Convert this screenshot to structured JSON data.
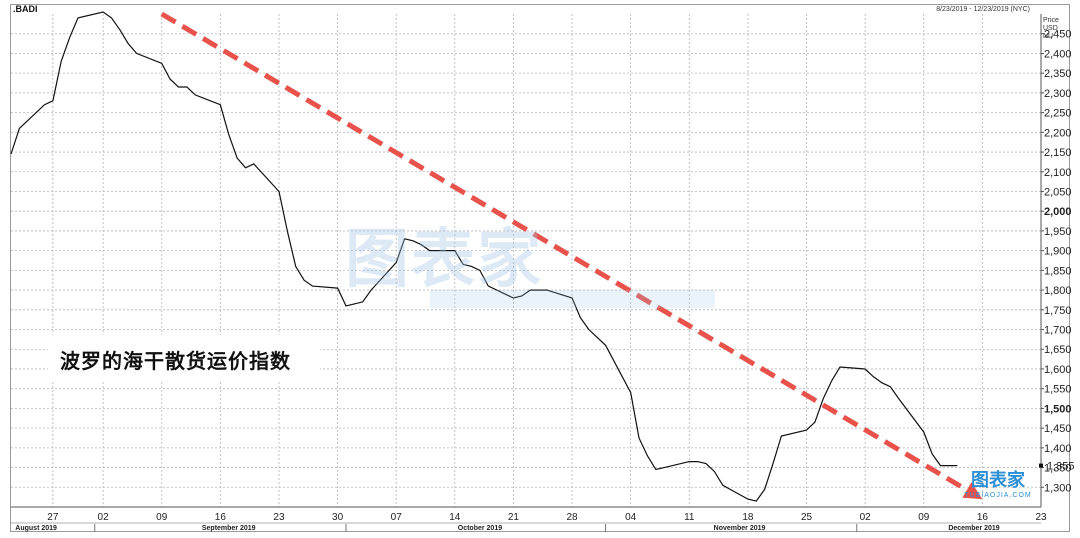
{
  "chart_data": {
    "type": "line",
    "title": ".BADI",
    "date_range_label": "8/23/2019 - 12/23/2019 (NYC)",
    "y_unit_labels": [
      "Price",
      "USD",
      "NU"
    ],
    "y_range": [
      1250,
      2500
    ],
    "y_ticks": [
      1300,
      1350,
      1400,
      1450,
      1500,
      1550,
      1600,
      1650,
      1700,
      1750,
      1800,
      1850,
      1900,
      1950,
      2000,
      2050,
      2100,
      2150,
      2200,
      2250,
      2300,
      2350,
      2400,
      2450
    ],
    "y_tick_labels": [
      "1,300",
      "1,350",
      "1,400",
      "1,450",
      "1,500",
      "1,550",
      "1,600",
      "1,650",
      "1,700",
      "1,750",
      "1,800",
      "1,850",
      "1,900",
      "1,950",
      "2,000",
      "2,050",
      "2,100",
      "2,150",
      "2,200",
      "2,250",
      "2,300",
      "2,350",
      "2,400",
      "2,450"
    ],
    "y_bold_ticks": [
      1500,
      2000
    ],
    "last_value_label": "1,355",
    "x_tick_labels": [
      "27",
      "02",
      "09",
      "16",
      "23",
      "30",
      "07",
      "14",
      "21",
      "28",
      "04",
      "11",
      "18",
      "25",
      "02",
      "09",
      "16",
      "23"
    ],
    "x_tick_dates": [
      "2019-08-27",
      "2019-09-02",
      "2019-09-09",
      "2019-09-16",
      "2019-09-23",
      "2019-09-30",
      "2019-10-07",
      "2019-10-14",
      "2019-10-21",
      "2019-10-28",
      "2019-11-04",
      "2019-11-11",
      "2019-11-18",
      "2019-11-25",
      "2019-12-02",
      "2019-12-09",
      "2019-12-16",
      "2019-12-23"
    ],
    "months": [
      {
        "label": "August 2019",
        "date": "2019-08-25"
      },
      {
        "label": "September 2019",
        "date": "2019-09-17"
      },
      {
        "label": "October 2019",
        "date": "2019-10-17"
      },
      {
        "label": "November 2019",
        "date": "2019-11-17"
      },
      {
        "label": "December 2019",
        "date": "2019-12-15"
      }
    ],
    "x_range": [
      "2019-08-22",
      "2019-12-23"
    ],
    "grid": true,
    "series": [
      {
        "x": [
          "2019-08-22",
          "2019-08-23",
          "2019-08-26",
          "2019-08-27",
          "2019-08-28",
          "2019-08-29",
          "2019-08-30",
          "2019-09-02",
          "2019-09-03",
          "2019-09-04",
          "2019-09-05",
          "2019-09-06",
          "2019-09-09",
          "2019-09-10",
          "2019-09-11",
          "2019-09-12",
          "2019-09-13",
          "2019-09-16",
          "2019-09-17",
          "2019-09-18",
          "2019-09-19",
          "2019-09-20",
          "2019-09-23",
          "2019-09-24",
          "2019-09-25",
          "2019-09-26",
          "2019-09-27",
          "2019-09-30",
          "2019-10-01",
          "2019-10-02",
          "2019-10-03",
          "2019-10-04",
          "2019-10-07",
          "2019-10-08",
          "2019-10-09",
          "2019-10-10",
          "2019-10-11",
          "2019-10-14",
          "2019-10-15",
          "2019-10-16",
          "2019-10-17",
          "2019-10-18",
          "2019-10-21",
          "2019-10-22",
          "2019-10-23",
          "2019-10-24",
          "2019-10-25",
          "2019-10-28",
          "2019-10-29",
          "2019-10-30",
          "2019-10-31",
          "2019-11-01",
          "2019-11-04",
          "2019-11-05",
          "2019-11-06",
          "2019-11-07",
          "2019-11-08",
          "2019-11-11",
          "2019-11-12",
          "2019-11-13",
          "2019-11-14",
          "2019-11-15",
          "2019-11-18",
          "2019-11-19",
          "2019-11-20",
          "2019-11-21",
          "2019-11-22",
          "2019-11-25",
          "2019-11-26",
          "2019-11-27",
          "2019-11-28",
          "2019-11-29",
          "2019-12-02",
          "2019-12-03",
          "2019-12-04",
          "2019-12-05",
          "2019-12-06",
          "2019-12-09",
          "2019-12-10",
          "2019-12-11",
          "2019-12-12",
          "2019-12-13"
        ],
        "y": [
          2145,
          2210,
          2270,
          2280,
          2380,
          2440,
          2490,
          2505,
          2490,
          2460,
          2425,
          2400,
          2375,
          2335,
          2315,
          2315,
          2295,
          2270,
          2195,
          2135,
          2110,
          2120,
          2050,
          1950,
          1860,
          1825,
          1810,
          1805,
          1760,
          1765,
          1770,
          1800,
          1870,
          1930,
          1925,
          1915,
          1900,
          1900,
          1865,
          1860,
          1850,
          1810,
          1780,
          1785,
          1800,
          1800,
          1800,
          1780,
          1730,
          1700,
          1680,
          1660,
          1540,
          1425,
          1380,
          1345,
          1350,
          1365,
          1365,
          1360,
          1340,
          1305,
          1270,
          1265,
          1295,
          1360,
          1430,
          1445,
          1465,
          1525,
          1570,
          1605,
          1600,
          1580,
          1565,
          1555,
          1525,
          1440,
          1385,
          1355,
          1355,
          1355
        ]
      }
    ],
    "trend_arrow": {
      "from_date": "2019-09-09",
      "from_value": 2500,
      "to_date": "2019-12-16",
      "to_value": 1270,
      "color": "#e8524a"
    },
    "annotation": "波罗的海干散货运价指数",
    "watermark": "图表家",
    "logo": {
      "text": "图表家",
      "subtext": "TUBIAOJIA.COM"
    }
  }
}
